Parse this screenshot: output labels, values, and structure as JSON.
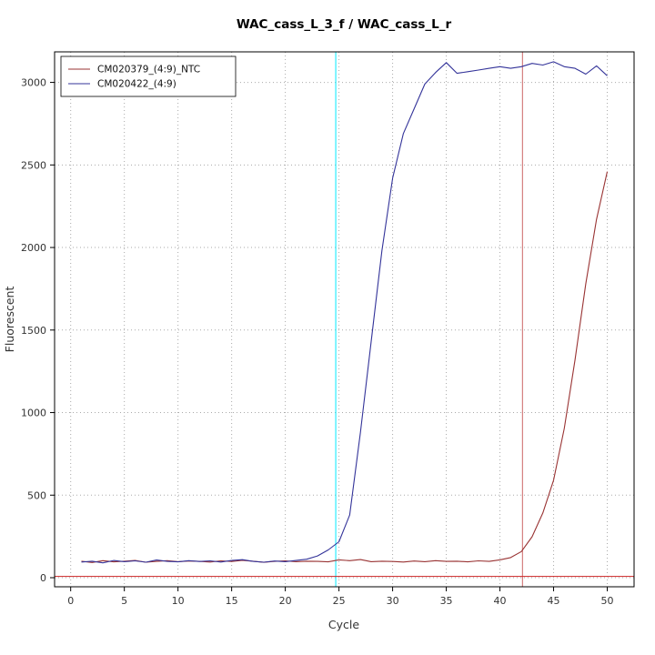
{
  "window": {
    "background": "#ffffff"
  },
  "chart_data": {
    "type": "line",
    "title": "WAC_cass_L_3_f / WAC_cass_L_r",
    "xlabel": "Cycle",
    "ylabel": "Fluorescent",
    "xlim": [
      -1.5,
      52.5
    ],
    "ylim": [
      -55,
      3185
    ],
    "xticks": [
      0,
      5,
      10,
      15,
      20,
      25,
      30,
      35,
      40,
      45,
      50
    ],
    "yticks": [
      0,
      500,
      1000,
      1500,
      2000,
      2500,
      3000
    ],
    "grid": {
      "style": "dotted",
      "color": "#aaaaaa"
    },
    "legend": {
      "position": "top-left"
    },
    "x": [
      1,
      2,
      3,
      4,
      5,
      6,
      7,
      8,
      9,
      10,
      11,
      12,
      13,
      14,
      15,
      16,
      17,
      18,
      19,
      20,
      21,
      22,
      23,
      24,
      25,
      26,
      27,
      28,
      29,
      30,
      31,
      32,
      33,
      34,
      35,
      36,
      37,
      38,
      39,
      40,
      41,
      42,
      43,
      44,
      45,
      46,
      47,
      48,
      49,
      50
    ],
    "series": [
      {
        "name": "CM020379_(4:9)_NTC",
        "color": "#993333",
        "values": [
          100,
          92,
          103,
          96,
          100,
          105,
          94,
          99,
          103,
          97,
          101,
          99,
          95,
          102,
          98,
          105,
          100,
          93,
          99,
          102,
          97,
          100,
          99,
          96,
          108,
          103,
          110,
          97,
          100,
          98,
          95,
          101,
          97,
          103,
          99,
          100,
          96,
          102,
          99,
          108,
          122,
          158,
          248,
          392,
          590,
          905,
          1320,
          1780,
          2170,
          2460
        ]
      },
      {
        "name": "CM020422_(4:9)",
        "color": "#333399",
        "values": [
          95,
          100,
          90,
          104,
          97,
          102,
          94,
          107,
          99,
          96,
          103,
          98,
          102,
          95,
          104,
          109,
          99,
          94,
          101,
          97,
          104,
          112,
          132,
          168,
          218,
          380,
          880,
          1430,
          1980,
          2420,
          2690,
          2840,
          2990,
          3060,
          3120,
          3055,
          3065,
          3075,
          3085,
          3095,
          3085,
          3095,
          3115,
          3105,
          3125,
          3095,
          3085,
          3050,
          3100,
          3040
        ]
      }
    ],
    "vlines": [
      {
        "x": 24.7,
        "color": "#00eaff"
      },
      {
        "x": 42.1,
        "color": "#cc6666"
      }
    ],
    "hlines": [
      {
        "y": 8,
        "color": "#cc2222"
      }
    ]
  }
}
